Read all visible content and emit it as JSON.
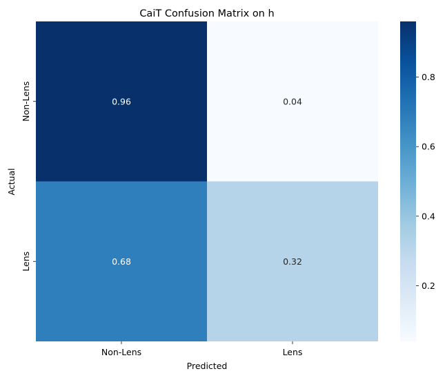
{
  "chart_data": {
    "type": "heatmap",
    "title": "CaiT Confusion Matrix on h",
    "xlabel": "Predicted",
    "ylabel": "Actual",
    "x_categories": [
      "Non-Lens",
      "Lens"
    ],
    "y_categories": [
      "Non-Lens",
      "Lens"
    ],
    "values": [
      [
        0.96,
        0.04
      ],
      [
        0.68,
        0.32
      ]
    ],
    "value_labels": [
      [
        "0.96",
        "0.04"
      ],
      [
        "0.68",
        "0.32"
      ]
    ],
    "colormap": "Blues",
    "colorbar": {
      "min": 0.04,
      "max": 0.96,
      "ticks": [
        0.2,
        0.4,
        0.6,
        0.8
      ],
      "tick_labels": [
        "0.2",
        "0.4",
        "0.6",
        "0.8"
      ]
    }
  }
}
